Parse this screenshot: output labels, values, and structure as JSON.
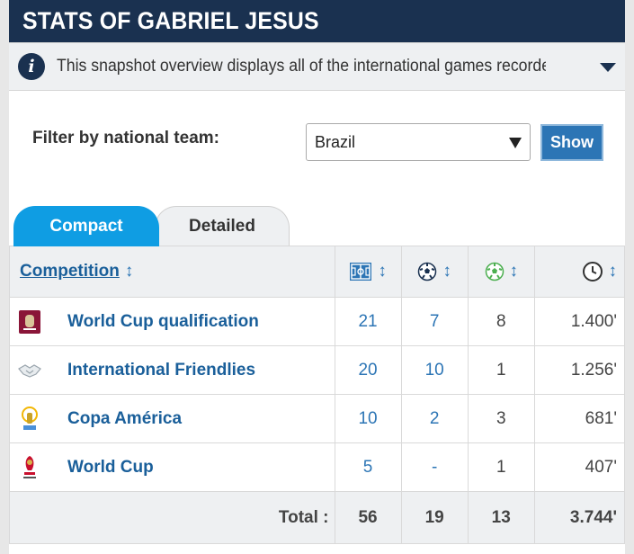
{
  "header": {
    "title": "STATS OF GABRIEL JESUS"
  },
  "info": {
    "text": "This snapshot overview displays all of the international games recorded f..."
  },
  "filter": {
    "label": "Filter by national team:",
    "selected": "Brazil",
    "button": "Show"
  },
  "tabs": [
    {
      "label": "Compact"
    },
    {
      "label": "Detailed"
    }
  ],
  "table": {
    "header": {
      "competition": "Competition",
      "sort": "↕"
    },
    "rows": [
      {
        "name": "World Cup qualification",
        "apps": "21",
        "goals": "7",
        "assists": "8",
        "minutes": "1.400'"
      },
      {
        "name": "International Friendlies",
        "apps": "20",
        "goals": "10",
        "assists": "1",
        "minutes": "1.256'"
      },
      {
        "name": "Copa América",
        "apps": "10",
        "goals": "2",
        "assists": "3",
        "minutes": "681'"
      },
      {
        "name": "World Cup",
        "apps": "5",
        "goals": "-",
        "assists": "1",
        "minutes": "407'"
      }
    ],
    "total": {
      "label": "Total :",
      "apps": "56",
      "goals": "19",
      "assists": "13",
      "minutes": "3.744'"
    }
  },
  "colors": {
    "header_bg": "#1a3150",
    "accent": "#0f9de3",
    "link": "#1a5f9a",
    "button": "#2c75b5"
  }
}
